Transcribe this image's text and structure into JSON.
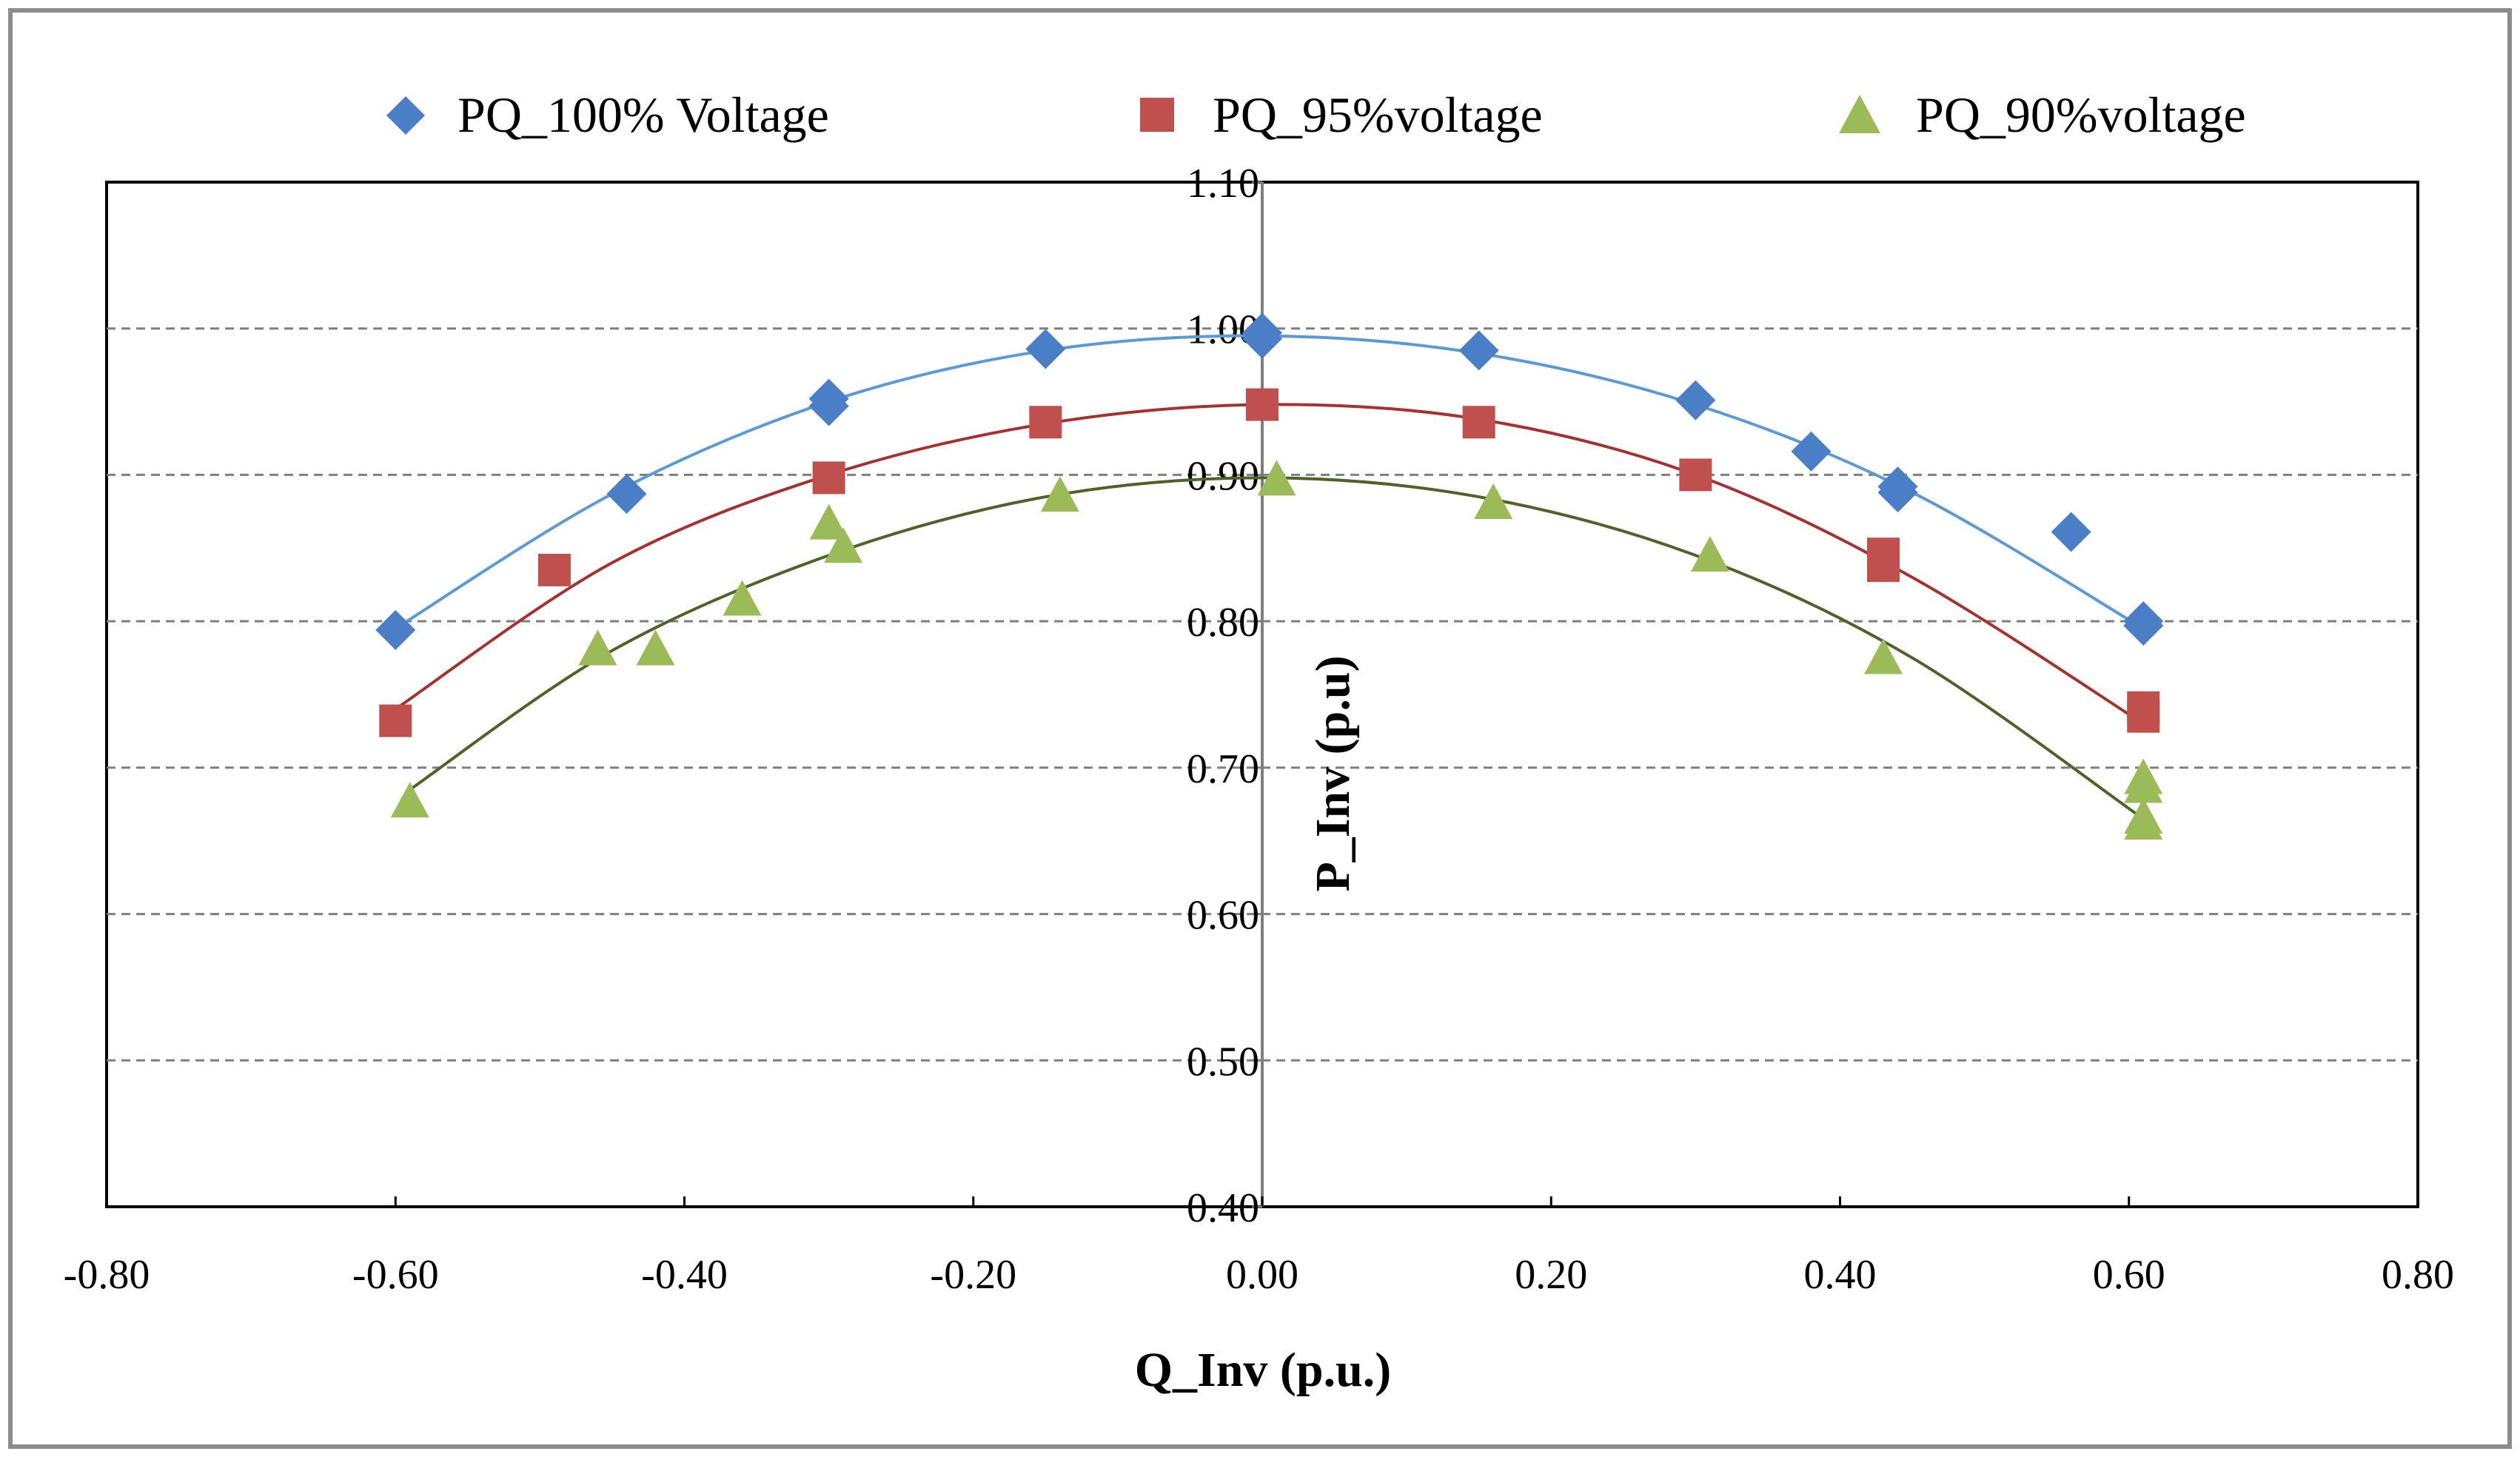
{
  "chart_data": {
    "type": "scatter",
    "title": "",
    "xlabel": "Q_Inv (p.u.)",
    "ylabel": "P_Inv (p.u)",
    "xlim": [
      -0.8,
      0.8
    ],
    "ylim": [
      0.4,
      1.1
    ],
    "x_ticks": [
      -0.8,
      -0.6,
      -0.4,
      -0.2,
      0.0,
      0.2,
      0.4,
      0.6,
      0.8
    ],
    "x_tick_labels": [
      "-0.80",
      "-0.60",
      "-0.40",
      "-0.20",
      "0.00",
      "0.20",
      "0.40",
      "0.60",
      "0.80"
    ],
    "y_ticks": [
      0.4,
      0.5,
      0.6,
      0.7,
      0.8,
      0.9,
      1.0,
      1.1
    ],
    "y_tick_labels": [
      "0.40",
      "0.50",
      "0.60",
      "0.70",
      "0.80",
      "0.90",
      "1.00",
      "1.10"
    ],
    "grid": "horizontal dashed",
    "legend_position": "top",
    "series": [
      {
        "name": "PQ_100% Voltage",
        "marker": "diamond",
        "marker_color": "#4a7ec7",
        "trend_color": "#5b9bd5",
        "x": [
          -0.6,
          -0.44,
          -0.3,
          -0.3,
          -0.15,
          0.0,
          0.0,
          0.15,
          0.3,
          0.38,
          0.44,
          0.44,
          0.56,
          0.61,
          0.61
        ],
        "y": [
          0.794,
          0.887,
          0.947,
          0.952,
          0.986,
          0.997,
          0.993,
          0.985,
          0.951,
          0.916,
          0.888,
          0.892,
          0.861,
          0.797,
          0.8
        ],
        "trendline": {
          "x": [
            -0.6,
            -0.45,
            -0.3,
            -0.15,
            0.0,
            0.15,
            0.3,
            0.45,
            0.61
          ],
          "y": [
            0.795,
            0.887,
            0.95,
            0.985,
            0.995,
            0.983,
            0.948,
            0.888,
            0.795
          ]
        }
      },
      {
        "name": "PQ_95%voltage",
        "marker": "square",
        "marker_color": "#c0504d",
        "trend_color": "#a5322f",
        "x": [
          -0.6,
          -0.49,
          -0.3,
          -0.15,
          0.0,
          0.15,
          0.3,
          0.43,
          0.43,
          0.61,
          0.61
        ],
        "y": [
          0.732,
          0.835,
          0.898,
          0.936,
          0.948,
          0.936,
          0.9,
          0.838,
          0.846,
          0.741,
          0.735
        ],
        "trendline": {
          "x": [
            -0.6,
            -0.45,
            -0.3,
            -0.15,
            0.0,
            0.15,
            0.3,
            0.45,
            0.61
          ],
          "y": [
            0.74,
            0.84,
            0.9,
            0.935,
            0.948,
            0.938,
            0.9,
            0.83,
            0.73
          ]
        }
      },
      {
        "name": "PQ_90%voltage",
        "marker": "triangle",
        "marker_color": "#9bbb59",
        "trend_color": "#4f6228",
        "x": [
          -0.59,
          -0.46,
          -0.42,
          -0.36,
          -0.3,
          -0.29,
          -0.14,
          0.01,
          0.16,
          0.31,
          0.43,
          0.61,
          0.61,
          0.61,
          0.61
        ],
        "y": [
          0.676,
          0.78,
          0.78,
          0.814,
          0.866,
          0.85,
          0.885,
          0.896,
          0.88,
          0.844,
          0.774,
          0.692,
          0.686,
          0.665,
          0.661
        ],
        "trendline": {
          "x": [
            -0.59,
            -0.45,
            -0.3,
            -0.15,
            0.0,
            0.15,
            0.3,
            0.45,
            0.61
          ],
          "y": [
            0.685,
            0.78,
            0.845,
            0.885,
            0.898,
            0.885,
            0.845,
            0.775,
            0.665
          ]
        }
      }
    ]
  }
}
